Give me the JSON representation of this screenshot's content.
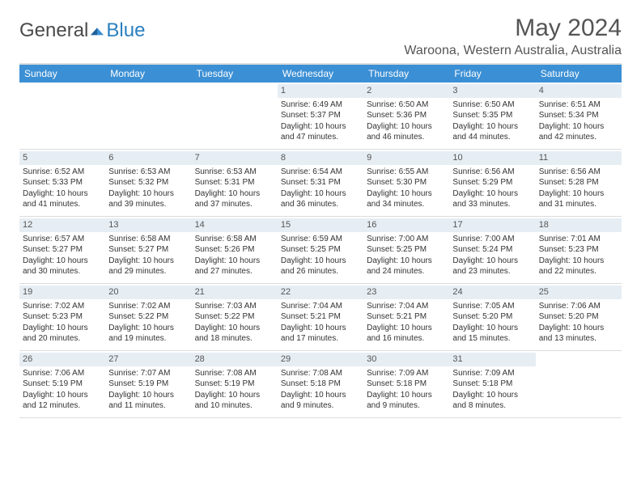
{
  "brand": {
    "general": "General",
    "blue": "Blue"
  },
  "title": "May 2024",
  "location": "Waroona, Western Australia, Australia",
  "colors": {
    "header_bar": "#3b8fd4",
    "day_band": "#e6eef4",
    "border": "#dcdcdc",
    "text": "#333333",
    "title_text": "#555555",
    "logo_blue": "#2a7fbf"
  },
  "weekdays": [
    "Sunday",
    "Monday",
    "Tuesday",
    "Wednesday",
    "Thursday",
    "Friday",
    "Saturday"
  ],
  "weeks": [
    [
      null,
      null,
      null,
      {
        "n": "1",
        "sr": "Sunrise: 6:49 AM",
        "ss": "Sunset: 5:37 PM",
        "d1": "Daylight: 10 hours",
        "d2": "and 47 minutes."
      },
      {
        "n": "2",
        "sr": "Sunrise: 6:50 AM",
        "ss": "Sunset: 5:36 PM",
        "d1": "Daylight: 10 hours",
        "d2": "and 46 minutes."
      },
      {
        "n": "3",
        "sr": "Sunrise: 6:50 AM",
        "ss": "Sunset: 5:35 PM",
        "d1": "Daylight: 10 hours",
        "d2": "and 44 minutes."
      },
      {
        "n": "4",
        "sr": "Sunrise: 6:51 AM",
        "ss": "Sunset: 5:34 PM",
        "d1": "Daylight: 10 hours",
        "d2": "and 42 minutes."
      }
    ],
    [
      {
        "n": "5",
        "sr": "Sunrise: 6:52 AM",
        "ss": "Sunset: 5:33 PM",
        "d1": "Daylight: 10 hours",
        "d2": "and 41 minutes."
      },
      {
        "n": "6",
        "sr": "Sunrise: 6:53 AM",
        "ss": "Sunset: 5:32 PM",
        "d1": "Daylight: 10 hours",
        "d2": "and 39 minutes."
      },
      {
        "n": "7",
        "sr": "Sunrise: 6:53 AM",
        "ss": "Sunset: 5:31 PM",
        "d1": "Daylight: 10 hours",
        "d2": "and 37 minutes."
      },
      {
        "n": "8",
        "sr": "Sunrise: 6:54 AM",
        "ss": "Sunset: 5:31 PM",
        "d1": "Daylight: 10 hours",
        "d2": "and 36 minutes."
      },
      {
        "n": "9",
        "sr": "Sunrise: 6:55 AM",
        "ss": "Sunset: 5:30 PM",
        "d1": "Daylight: 10 hours",
        "d2": "and 34 minutes."
      },
      {
        "n": "10",
        "sr": "Sunrise: 6:56 AM",
        "ss": "Sunset: 5:29 PM",
        "d1": "Daylight: 10 hours",
        "d2": "and 33 minutes."
      },
      {
        "n": "11",
        "sr": "Sunrise: 6:56 AM",
        "ss": "Sunset: 5:28 PM",
        "d1": "Daylight: 10 hours",
        "d2": "and 31 minutes."
      }
    ],
    [
      {
        "n": "12",
        "sr": "Sunrise: 6:57 AM",
        "ss": "Sunset: 5:27 PM",
        "d1": "Daylight: 10 hours",
        "d2": "and 30 minutes."
      },
      {
        "n": "13",
        "sr": "Sunrise: 6:58 AM",
        "ss": "Sunset: 5:27 PM",
        "d1": "Daylight: 10 hours",
        "d2": "and 29 minutes."
      },
      {
        "n": "14",
        "sr": "Sunrise: 6:58 AM",
        "ss": "Sunset: 5:26 PM",
        "d1": "Daylight: 10 hours",
        "d2": "and 27 minutes."
      },
      {
        "n": "15",
        "sr": "Sunrise: 6:59 AM",
        "ss": "Sunset: 5:25 PM",
        "d1": "Daylight: 10 hours",
        "d2": "and 26 minutes."
      },
      {
        "n": "16",
        "sr": "Sunrise: 7:00 AM",
        "ss": "Sunset: 5:25 PM",
        "d1": "Daylight: 10 hours",
        "d2": "and 24 minutes."
      },
      {
        "n": "17",
        "sr": "Sunrise: 7:00 AM",
        "ss": "Sunset: 5:24 PM",
        "d1": "Daylight: 10 hours",
        "d2": "and 23 minutes."
      },
      {
        "n": "18",
        "sr": "Sunrise: 7:01 AM",
        "ss": "Sunset: 5:23 PM",
        "d1": "Daylight: 10 hours",
        "d2": "and 22 minutes."
      }
    ],
    [
      {
        "n": "19",
        "sr": "Sunrise: 7:02 AM",
        "ss": "Sunset: 5:23 PM",
        "d1": "Daylight: 10 hours",
        "d2": "and 20 minutes."
      },
      {
        "n": "20",
        "sr": "Sunrise: 7:02 AM",
        "ss": "Sunset: 5:22 PM",
        "d1": "Daylight: 10 hours",
        "d2": "and 19 minutes."
      },
      {
        "n": "21",
        "sr": "Sunrise: 7:03 AM",
        "ss": "Sunset: 5:22 PM",
        "d1": "Daylight: 10 hours",
        "d2": "and 18 minutes."
      },
      {
        "n": "22",
        "sr": "Sunrise: 7:04 AM",
        "ss": "Sunset: 5:21 PM",
        "d1": "Daylight: 10 hours",
        "d2": "and 17 minutes."
      },
      {
        "n": "23",
        "sr": "Sunrise: 7:04 AM",
        "ss": "Sunset: 5:21 PM",
        "d1": "Daylight: 10 hours",
        "d2": "and 16 minutes."
      },
      {
        "n": "24",
        "sr": "Sunrise: 7:05 AM",
        "ss": "Sunset: 5:20 PM",
        "d1": "Daylight: 10 hours",
        "d2": "and 15 minutes."
      },
      {
        "n": "25",
        "sr": "Sunrise: 7:06 AM",
        "ss": "Sunset: 5:20 PM",
        "d1": "Daylight: 10 hours",
        "d2": "and 13 minutes."
      }
    ],
    [
      {
        "n": "26",
        "sr": "Sunrise: 7:06 AM",
        "ss": "Sunset: 5:19 PM",
        "d1": "Daylight: 10 hours",
        "d2": "and 12 minutes."
      },
      {
        "n": "27",
        "sr": "Sunrise: 7:07 AM",
        "ss": "Sunset: 5:19 PM",
        "d1": "Daylight: 10 hours",
        "d2": "and 11 minutes."
      },
      {
        "n": "28",
        "sr": "Sunrise: 7:08 AM",
        "ss": "Sunset: 5:19 PM",
        "d1": "Daylight: 10 hours",
        "d2": "and 10 minutes."
      },
      {
        "n": "29",
        "sr": "Sunrise: 7:08 AM",
        "ss": "Sunset: 5:18 PM",
        "d1": "Daylight: 10 hours",
        "d2": "and 9 minutes."
      },
      {
        "n": "30",
        "sr": "Sunrise: 7:09 AM",
        "ss": "Sunset: 5:18 PM",
        "d1": "Daylight: 10 hours",
        "d2": "and 9 minutes."
      },
      {
        "n": "31",
        "sr": "Sunrise: 7:09 AM",
        "ss": "Sunset: 5:18 PM",
        "d1": "Daylight: 10 hours",
        "d2": "and 8 minutes."
      },
      null
    ]
  ]
}
